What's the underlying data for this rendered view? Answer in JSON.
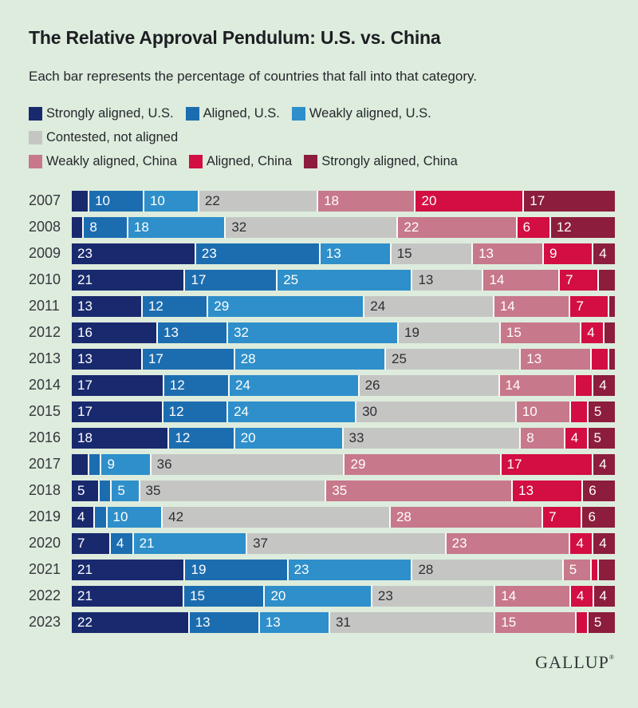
{
  "header": {
    "title": "The Relative Approval Pendulum: U.S. vs. China",
    "subtitle": "Each bar represents the percentage of countries that fall into that category."
  },
  "legend": {
    "rows": [
      [
        {
          "label": "Strongly aligned, U.S.",
          "color": "#19296e"
        },
        {
          "label": "Aligned, U.S.",
          "color": "#1c6db0"
        },
        {
          "label": "Weakly aligned, U.S.",
          "color": "#2e8fca"
        }
      ],
      [
        {
          "label": "Contested, not aligned",
          "color": "#c5c6c3"
        }
      ],
      [
        {
          "label": "Weakly aligned, China",
          "color": "#c7788a"
        },
        {
          "label": "Aligned, China",
          "color": "#d20e42"
        },
        {
          "label": "Strongly aligned, China",
          "color": "#8c1d3c"
        }
      ]
    ]
  },
  "chart_data": {
    "type": "bar",
    "stacked": true,
    "orientation": "horizontal",
    "unit": "percent of countries",
    "label_min_value": 4,
    "categories": [
      "2007",
      "2008",
      "2009",
      "2010",
      "2011",
      "2012",
      "2013",
      "2014",
      "2015",
      "2016",
      "2017",
      "2018",
      "2019",
      "2020",
      "2021",
      "2022",
      "2023"
    ],
    "series": [
      {
        "name": "Strongly aligned, U.S.",
        "color": "#19296e",
        "label_color": "#ffffff",
        "values": [
          3,
          2,
          23,
          21,
          13,
          16,
          13,
          17,
          17,
          18,
          3,
          5,
          4,
          7,
          21,
          21,
          22
        ]
      },
      {
        "name": "Aligned, U.S.",
        "color": "#1c6db0",
        "label_color": "#ffffff",
        "values": [
          10,
          8,
          23,
          17,
          12,
          13,
          17,
          12,
          12,
          12,
          2,
          2,
          2,
          4,
          19,
          15,
          13
        ]
      },
      {
        "name": "Weakly aligned, U.S.",
        "color": "#2e8fca",
        "label_color": "#ffffff",
        "values": [
          10,
          18,
          13,
          25,
          29,
          32,
          28,
          24,
          24,
          20,
          9,
          5,
          10,
          21,
          23,
          20,
          13
        ]
      },
      {
        "name": "Contested, not aligned",
        "color": "#c5c6c3",
        "label_color": "#2d2e33",
        "values": [
          22,
          32,
          15,
          13,
          24,
          19,
          25,
          26,
          30,
          33,
          36,
          35,
          42,
          37,
          28,
          23,
          31
        ]
      },
      {
        "name": "Weakly aligned, China",
        "color": "#c7788a",
        "label_color": "#ffffff",
        "values": [
          18,
          22,
          13,
          14,
          14,
          15,
          13,
          14,
          10,
          8,
          29,
          35,
          28,
          23,
          5,
          14,
          15
        ]
      },
      {
        "name": "Aligned, China",
        "color": "#d20e42",
        "label_color": "#ffffff",
        "values": [
          20,
          6,
          9,
          7,
          7,
          4,
          3,
          3,
          3,
          4,
          17,
          13,
          7,
          4,
          1,
          4,
          2
        ]
      },
      {
        "name": "Strongly aligned, China",
        "color": "#8c1d3c",
        "label_color": "#ffffff",
        "values": [
          17,
          12,
          4,
          3,
          1,
          2,
          1,
          4,
          5,
          5,
          4,
          6,
          6,
          4,
          3,
          4,
          5
        ]
      }
    ],
    "notes": "Values without visible labels in the source (< 4) are estimated from segment widths"
  },
  "footer": {
    "brand": "GALLUP",
    "trademark": "®"
  }
}
